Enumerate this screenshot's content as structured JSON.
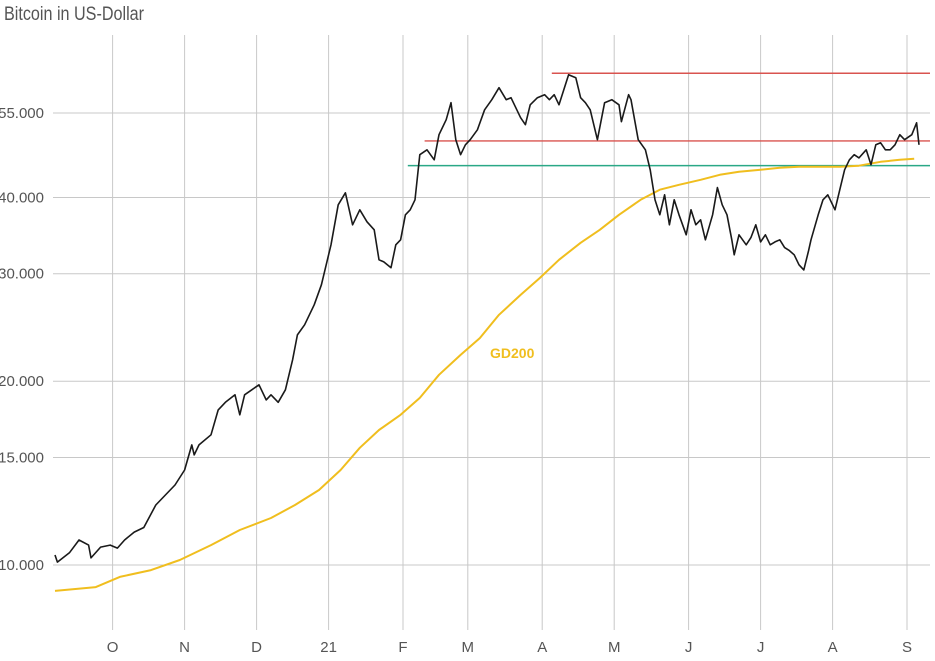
{
  "chart_data": {
    "type": "line",
    "title": "Bitcoin in US-Dollar",
    "xlabel": "",
    "ylabel": "",
    "yscale": "log",
    "ylim": [
      8500,
      66000
    ],
    "xlim_days": [
      0,
      362
    ],
    "x_unit": "days since early September 2020",
    "grid": true,
    "y_ticks": [
      {
        "value": 10000,
        "label": "10.000"
      },
      {
        "value": 15000,
        "label": "15.000"
      },
      {
        "value": 20000,
        "label": "20.000"
      },
      {
        "value": 30000,
        "label": "30.000"
      },
      {
        "value": 40000,
        "label": "40.000"
      },
      {
        "value": 55000,
        "label": "55.000"
      }
    ],
    "x_ticks": [
      {
        "day": 24,
        "label": "O"
      },
      {
        "day": 54,
        "label": "N"
      },
      {
        "day": 84,
        "label": "D"
      },
      {
        "day": 114,
        "label": "21"
      },
      {
        "day": 145,
        "label": "F"
      },
      {
        "day": 172,
        "label": "M"
      },
      {
        "day": 203,
        "label": "A"
      },
      {
        "day": 233,
        "label": "M"
      },
      {
        "day": 264,
        "label": "J"
      },
      {
        "day": 294,
        "label": "J"
      },
      {
        "day": 324,
        "label": "A"
      },
      {
        "day": 355,
        "label": "S"
      }
    ],
    "series": [
      {
        "name": "Bitcoin",
        "color": "#1a1a1a",
        "points": [
          [
            0,
            10385
          ],
          [
            1,
            10110
          ],
          [
            6,
            10470
          ],
          [
            10,
            10990
          ],
          [
            14,
            10780
          ],
          [
            15,
            10270
          ],
          [
            19,
            10700
          ],
          [
            23,
            10780
          ],
          [
            26,
            10660
          ],
          [
            29,
            10990
          ],
          [
            33,
            11320
          ],
          [
            37,
            11520
          ],
          [
            42,
            12540
          ],
          [
            46,
            13020
          ],
          [
            50,
            13520
          ],
          [
            54,
            14310
          ],
          [
            57,
            15730
          ],
          [
            58,
            15150
          ],
          [
            60,
            15730
          ],
          [
            65,
            16340
          ],
          [
            68,
            17950
          ],
          [
            71,
            18470
          ],
          [
            75,
            19000
          ],
          [
            77,
            17620
          ],
          [
            79,
            19000
          ],
          [
            82,
            19360
          ],
          [
            85,
            19730
          ],
          [
            88,
            18640
          ],
          [
            90,
            19000
          ],
          [
            93,
            18470
          ],
          [
            96,
            19360
          ],
          [
            99,
            21680
          ],
          [
            101,
            23820
          ],
          [
            104,
            24740
          ],
          [
            108,
            26680
          ],
          [
            111,
            28770
          ],
          [
            115,
            33460
          ],
          [
            118,
            38910
          ],
          [
            121,
            40710
          ],
          [
            124,
            36080
          ],
          [
            127,
            38180
          ],
          [
            130,
            36490
          ],
          [
            133,
            35400
          ],
          [
            135,
            31620
          ],
          [
            137,
            31370
          ],
          [
            140,
            30690
          ],
          [
            142,
            33460
          ],
          [
            144,
            34090
          ],
          [
            146,
            37470
          ],
          [
            148,
            38180
          ],
          [
            150,
            39650
          ],
          [
            152,
            46990
          ],
          [
            155,
            47880
          ],
          [
            158,
            46100
          ],
          [
            160,
            50670
          ],
          [
            163,
            53620
          ],
          [
            165,
            57180
          ],
          [
            167,
            49730
          ],
          [
            169,
            46990
          ],
          [
            171,
            48790
          ],
          [
            173,
            49730
          ],
          [
            176,
            51630
          ],
          [
            179,
            55680
          ],
          [
            182,
            57830
          ],
          [
            185,
            60510
          ],
          [
            188,
            57830
          ],
          [
            190,
            58270
          ],
          [
            194,
            54030
          ],
          [
            196,
            52620
          ],
          [
            198,
            56740
          ],
          [
            201,
            58270
          ],
          [
            204,
            58930
          ],
          [
            206,
            57830
          ],
          [
            208,
            58930
          ],
          [
            210,
            56740
          ],
          [
            214,
            63550
          ],
          [
            217,
            62840
          ],
          [
            219,
            58270
          ],
          [
            221,
            57180
          ],
          [
            223,
            55680
          ],
          [
            226,
            49730
          ],
          [
            229,
            57180
          ],
          [
            232,
            57830
          ],
          [
            235,
            56740
          ],
          [
            236,
            53230
          ],
          [
            239,
            58930
          ],
          [
            240,
            57830
          ],
          [
            243,
            49730
          ],
          [
            246,
            47880
          ],
          [
            248,
            44400
          ],
          [
            250,
            39650
          ],
          [
            252,
            37470
          ],
          [
            254,
            40400
          ],
          [
            256,
            36080
          ],
          [
            258,
            39650
          ],
          [
            260,
            37470
          ],
          [
            263,
            34740
          ],
          [
            265,
            38180
          ],
          [
            267,
            36080
          ],
          [
            269,
            36770
          ],
          [
            271,
            34090
          ],
          [
            274,
            37470
          ],
          [
            276,
            41520
          ],
          [
            278,
            38910
          ],
          [
            280,
            37470
          ],
          [
            282,
            34090
          ],
          [
            283,
            32220
          ],
          [
            285,
            34740
          ],
          [
            288,
            33460
          ],
          [
            290,
            34410
          ],
          [
            292,
            36080
          ],
          [
            294,
            33830
          ],
          [
            296,
            34740
          ],
          [
            298,
            33460
          ],
          [
            300,
            33830
          ],
          [
            302,
            34090
          ],
          [
            304,
            33100
          ],
          [
            306,
            32730
          ],
          [
            308,
            32220
          ],
          [
            310,
            31030
          ],
          [
            312,
            30440
          ],
          [
            314,
            32730
          ],
          [
            315,
            34090
          ],
          [
            318,
            37470
          ],
          [
            320,
            39650
          ],
          [
            322,
            40400
          ],
          [
            325,
            38180
          ],
          [
            327,
            41180
          ],
          [
            329,
            44400
          ],
          [
            331,
            46110
          ],
          [
            333,
            46990
          ],
          [
            335,
            46440
          ],
          [
            338,
            47880
          ],
          [
            340,
            45250
          ],
          [
            342,
            48790
          ],
          [
            344,
            49160
          ],
          [
            346,
            47880
          ],
          [
            348,
            47880
          ],
          [
            350,
            48790
          ],
          [
            352,
            50670
          ],
          [
            354,
            49730
          ],
          [
            357,
            50670
          ],
          [
            359,
            53000
          ],
          [
            360,
            48790
          ]
        ]
      },
      {
        "name": "GD200",
        "label": "GD200",
        "color": "#f0be1e",
        "points": [
          [
            0,
            9070
          ],
          [
            17,
            9200
          ],
          [
            27,
            9560
          ],
          [
            40,
            9810
          ],
          [
            52,
            10190
          ],
          [
            65,
            10780
          ],
          [
            77,
            11410
          ],
          [
            90,
            11940
          ],
          [
            100,
            12540
          ],
          [
            110,
            13270
          ],
          [
            119,
            14310
          ],
          [
            127,
            15560
          ],
          [
            135,
            16640
          ],
          [
            144,
            17620
          ],
          [
            152,
            18780
          ],
          [
            160,
            20490
          ],
          [
            169,
            22090
          ],
          [
            177,
            23530
          ],
          [
            185,
            25690
          ],
          [
            194,
            27700
          ],
          [
            202,
            29520
          ],
          [
            210,
            31620
          ],
          [
            219,
            33710
          ],
          [
            227,
            35400
          ],
          [
            235,
            37470
          ],
          [
            244,
            39650
          ],
          [
            252,
            41180
          ],
          [
            260,
            41960
          ],
          [
            269,
            42760
          ],
          [
            277,
            43570
          ],
          [
            285,
            44070
          ],
          [
            294,
            44400
          ],
          [
            302,
            44740
          ],
          [
            310,
            44920
          ],
          [
            319,
            44920
          ],
          [
            327,
            44920
          ],
          [
            335,
            45080
          ],
          [
            344,
            45760
          ],
          [
            352,
            46110
          ],
          [
            358,
            46280
          ]
        ]
      }
    ],
    "reference_lines": [
      {
        "name": "resistance-high",
        "value": 63900,
        "from_day": 207,
        "color": "#d9534f"
      },
      {
        "name": "resistance-mid",
        "value": 49500,
        "from_day": 154,
        "color": "#d9534f"
      },
      {
        "name": "support",
        "value": 45100,
        "from_day": 147,
        "color": "#2aa886"
      }
    ]
  }
}
